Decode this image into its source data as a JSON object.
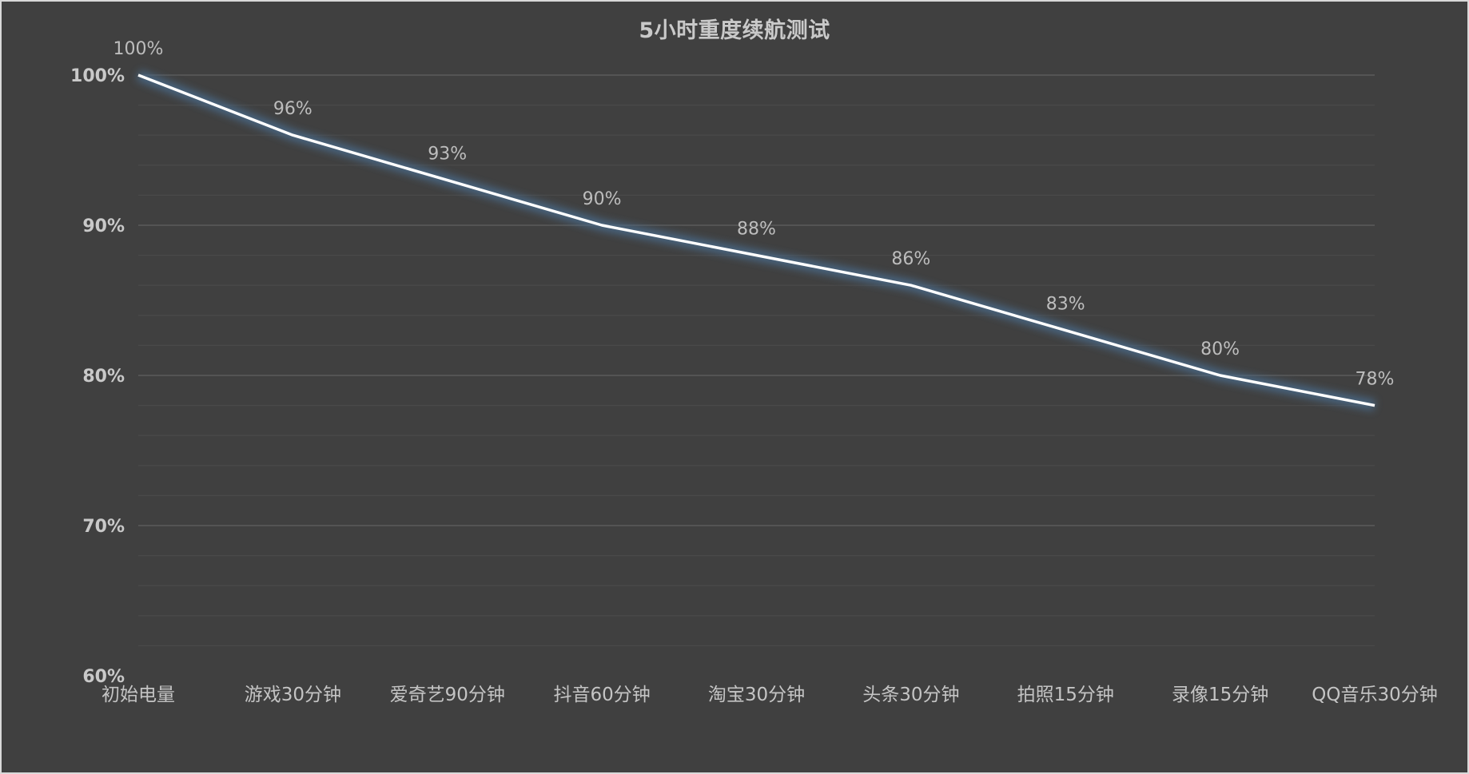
{
  "chart_data": {
    "type": "line",
    "title": "5小时重度续航测试",
    "xlabel": "",
    "ylabel": "",
    "categories": [
      "初始电量",
      "游戏30分钟",
      "爱奇艺90分钟",
      "抖音60分钟",
      "淘宝30分钟",
      "头条30分钟",
      "拍照15分钟",
      "录像15分钟",
      "QQ音乐30分钟"
    ],
    "series": [
      {
        "name": "电量",
        "values": [
          100,
          96,
          93,
          90,
          88,
          86,
          83,
          80,
          78
        ],
        "data_labels": [
          "100%",
          "96%",
          "93%",
          "90%",
          "88%",
          "86%",
          "83%",
          "80%",
          "78%"
        ],
        "color": "#ffffff",
        "glow_color": "#4a6a8a"
      }
    ],
    "ylim": [
      60,
      100
    ],
    "y_ticks": [
      100,
      90,
      80,
      70,
      60
    ],
    "y_tick_labels": [
      "100%",
      "90%",
      "80%",
      "70%",
      "60%"
    ],
    "y_minor_step": 2,
    "grid": true,
    "legend": "none"
  },
  "colors": {
    "background": "#404040",
    "border": "#d9d9d9",
    "text": "#c9c9c9",
    "grid_major": "#5a5a5a",
    "grid_minor": "#4a4a4a"
  }
}
